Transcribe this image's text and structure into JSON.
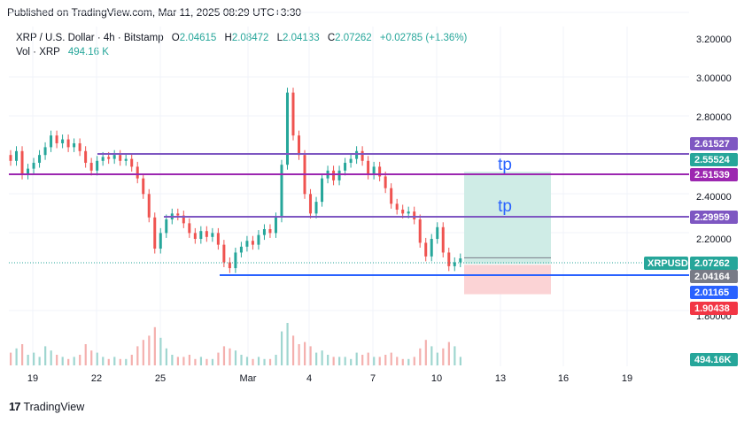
{
  "header": {
    "published": "Published on TradingView.com, Mar 11, 2025 08:29 UTC+3:30"
  },
  "legend": {
    "symbol": "XRP / U.S. Dollar · 4h · Bitstamp",
    "o_label": "O",
    "o": "2.04615",
    "h_label": "H",
    "h": "2.08472",
    "l_label": "L",
    "l": "2.04133",
    "c_label": "C",
    "c": "2.07262",
    "change": "+0.02785 (+1.36%)",
    "vol_label": "Vol · XRP",
    "vol": "494.16 K"
  },
  "footer": {
    "brand": "TradingView",
    "logo": "17"
  },
  "colors": {
    "up": "#26a69a",
    "down": "#ef5350",
    "vol_up": "#9fd6d0",
    "vol_down": "#f4b0ae",
    "purple": "#7e57c2",
    "magenta": "#9c27b0",
    "blue": "#2962ff",
    "target": "#cfece6",
    "stop": "#fbd3d5"
  },
  "chart_data": {
    "type": "candlestick",
    "symbol": "XRPUSD",
    "timeframe": "4h",
    "x_ticks": [
      "19",
      "22",
      "25",
      "Mar",
      "4",
      "7",
      "10",
      "13",
      "16",
      "19"
    ],
    "y_ticks": [
      "3.20000",
      "3.00000",
      "2.80000",
      "2.40000",
      "2.20000",
      "1.80000"
    ],
    "ylim": [
      1.6,
      3.25
    ],
    "levels": [
      {
        "label": "2.61527",
        "price": 2.61527,
        "color": "#7e57c2"
      },
      {
        "label": "2.55524",
        "price": 2.55524,
        "color": "#26a69a"
      },
      {
        "label": "2.51539",
        "price": 2.51539,
        "color": "#9c27b0"
      },
      {
        "label": "2.29959",
        "price": 2.29959,
        "color": "#7e57c2"
      },
      {
        "label": "2.04164",
        "price": 2.04164,
        "color": "#787b86"
      },
      {
        "label": "2.01165",
        "price": 2.01165,
        "color": "#2962ff"
      },
      {
        "label": "1.90438",
        "price": 1.90438,
        "color": "#f23645"
      }
    ],
    "last_price": {
      "symbol": "XRPUSD",
      "value": "2.07262",
      "price": 2.07262
    },
    "volume_tag": "494.16K",
    "take_profit_labels": [
      "tp",
      "tp"
    ],
    "position": {
      "entry": 2.04164,
      "target": 2.55524,
      "stop": 1.90438
    },
    "candles": [
      {
        "t": 0,
        "o": 2.6,
        "c": 2.57
      },
      {
        "t": 3,
        "o": 2.57,
        "c": 2.62
      },
      {
        "t": 6,
        "o": 2.62,
        "c": 2.5
      },
      {
        "t": 9,
        "o": 2.5,
        "c": 2.53
      },
      {
        "t": 12,
        "o": 2.53,
        "c": 2.56
      },
      {
        "t": 15,
        "o": 2.56,
        "c": 2.6
      },
      {
        "t": 18,
        "o": 2.6,
        "c": 2.64
      },
      {
        "t": 21,
        "o": 2.64,
        "c": 2.7
      },
      {
        "t": 24,
        "o": 2.7,
        "c": 2.66
      },
      {
        "t": 27,
        "o": 2.66,
        "c": 2.68
      },
      {
        "t": 30,
        "o": 2.68,
        "c": 2.64
      },
      {
        "t": 33,
        "o": 2.64,
        "c": 2.66
      },
      {
        "t": 36,
        "o": 2.66,
        "c": 2.62
      },
      {
        "t": 39,
        "o": 2.62,
        "c": 2.56
      },
      {
        "t": 42,
        "o": 2.56,
        "c": 2.52
      },
      {
        "t": 45,
        "o": 2.52,
        "c": 2.57
      },
      {
        "t": 48,
        "o": 2.57,
        "c": 2.59
      },
      {
        "t": 51,
        "o": 2.59,
        "c": 2.58
      },
      {
        "t": 54,
        "o": 2.58,
        "c": 2.6
      },
      {
        "t": 57,
        "o": 2.6,
        "c": 2.57
      },
      {
        "t": 60,
        "o": 2.57,
        "c": 2.58
      },
      {
        "t": 63,
        "o": 2.58,
        "c": 2.54
      },
      {
        "t": 66,
        "o": 2.54,
        "c": 2.48
      },
      {
        "t": 69,
        "o": 2.48,
        "c": 2.4
      },
      {
        "t": 72,
        "o": 2.4,
        "c": 2.28
      },
      {
        "t": 75,
        "o": 2.28,
        "c": 2.12
      },
      {
        "t": 78,
        "o": 2.12,
        "c": 2.2
      },
      {
        "t": 81,
        "o": 2.2,
        "c": 2.27
      },
      {
        "t": 84,
        "o": 2.27,
        "c": 2.3
      },
      {
        "t": 87,
        "o": 2.3,
        "c": 2.29
      },
      {
        "t": 90,
        "o": 2.29,
        "c": 2.25
      },
      {
        "t": 93,
        "o": 2.25,
        "c": 2.2
      },
      {
        "t": 96,
        "o": 2.2,
        "c": 2.17
      },
      {
        "t": 99,
        "o": 2.17,
        "c": 2.21
      },
      {
        "t": 102,
        "o": 2.21,
        "c": 2.18
      },
      {
        "t": 105,
        "o": 2.18,
        "c": 2.2
      },
      {
        "t": 108,
        "o": 2.2,
        "c": 2.14
      },
      {
        "t": 111,
        "o": 2.14,
        "c": 2.05
      },
      {
        "t": 114,
        "o": 2.05,
        "c": 2.02
      },
      {
        "t": 117,
        "o": 2.02,
        "c": 2.1
      },
      {
        "t": 120,
        "o": 2.1,
        "c": 2.13
      },
      {
        "t": 123,
        "o": 2.13,
        "c": 2.16
      },
      {
        "t": 126,
        "o": 2.16,
        "c": 2.14
      },
      {
        "t": 129,
        "o": 2.14,
        "c": 2.19
      },
      {
        "t": 132,
        "o": 2.19,
        "c": 2.22
      },
      {
        "t": 135,
        "o": 2.22,
        "c": 2.2
      },
      {
        "t": 138,
        "o": 2.2,
        "c": 2.28
      },
      {
        "t": 141,
        "o": 2.28,
        "c": 2.55
      },
      {
        "t": 144,
        "o": 2.55,
        "c": 2.92
      },
      {
        "t": 147,
        "o": 2.92,
        "c": 2.7
      },
      {
        "t": 150,
        "o": 2.7,
        "c": 2.6
      },
      {
        "t": 153,
        "o": 2.6,
        "c": 2.4
      },
      {
        "t": 156,
        "o": 2.4,
        "c": 2.3
      },
      {
        "t": 159,
        "o": 2.3,
        "c": 2.36
      },
      {
        "t": 162,
        "o": 2.36,
        "c": 2.48
      },
      {
        "t": 165,
        "o": 2.48,
        "c": 2.52
      },
      {
        "t": 168,
        "o": 2.52,
        "c": 2.47
      },
      {
        "t": 171,
        "o": 2.47,
        "c": 2.52
      },
      {
        "t": 174,
        "o": 2.52,
        "c": 2.56
      },
      {
        "t": 177,
        "o": 2.56,
        "c": 2.58
      },
      {
        "t": 180,
        "o": 2.58,
        "c": 2.62
      },
      {
        "t": 183,
        "o": 2.62,
        "c": 2.57
      },
      {
        "t": 186,
        "o": 2.57,
        "c": 2.5
      },
      {
        "t": 189,
        "o": 2.5,
        "c": 2.54
      },
      {
        "t": 192,
        "o": 2.54,
        "c": 2.49
      },
      {
        "t": 195,
        "o": 2.49,
        "c": 2.43
      },
      {
        "t": 198,
        "o": 2.43,
        "c": 2.35
      },
      {
        "t": 201,
        "o": 2.35,
        "c": 2.32
      },
      {
        "t": 204,
        "o": 2.32,
        "c": 2.3
      },
      {
        "t": 207,
        "o": 2.3,
        "c": 2.31
      },
      {
        "t": 210,
        "o": 2.31,
        "c": 2.27
      },
      {
        "t": 213,
        "o": 2.27,
        "c": 2.15
      },
      {
        "t": 216,
        "o": 2.15,
        "c": 2.08
      },
      {
        "t": 219,
        "o": 2.08,
        "c": 2.17
      },
      {
        "t": 222,
        "o": 2.17,
        "c": 2.23
      },
      {
        "t": 225,
        "o": 2.23,
        "c": 2.1
      },
      {
        "t": 228,
        "o": 2.1,
        "c": 2.03
      },
      {
        "t": 231,
        "o": 2.03,
        "c": 2.05
      },
      {
        "t": 234,
        "o": 2.05,
        "c": 2.07
      }
    ],
    "volume": [
      {
        "t": 0,
        "v": 6,
        "up": false
      },
      {
        "t": 3,
        "v": 8,
        "up": true
      },
      {
        "t": 6,
        "v": 10,
        "up": false
      },
      {
        "t": 9,
        "v": 5,
        "up": true
      },
      {
        "t": 12,
        "v": 6,
        "up": true
      },
      {
        "t": 15,
        "v": 4,
        "up": true
      },
      {
        "t": 18,
        "v": 9,
        "up": true
      },
      {
        "t": 21,
        "v": 7,
        "up": true
      },
      {
        "t": 24,
        "v": 5,
        "up": false
      },
      {
        "t": 27,
        "v": 4,
        "up": true
      },
      {
        "t": 30,
        "v": 3,
        "up": false
      },
      {
        "t": 33,
        "v": 4,
        "up": true
      },
      {
        "t": 36,
        "v": 5,
        "up": false
      },
      {
        "t": 39,
        "v": 10,
        "up": false
      },
      {
        "t": 42,
        "v": 7,
        "up": false
      },
      {
        "t": 45,
        "v": 6,
        "up": true
      },
      {
        "t": 48,
        "v": 4,
        "up": true
      },
      {
        "t": 51,
        "v": 3,
        "up": false
      },
      {
        "t": 54,
        "v": 4,
        "up": true
      },
      {
        "t": 57,
        "v": 3,
        "up": false
      },
      {
        "t": 60,
        "v": 3,
        "up": true
      },
      {
        "t": 63,
        "v": 5,
        "up": false
      },
      {
        "t": 66,
        "v": 9,
        "up": false
      },
      {
        "t": 69,
        "v": 12,
        "up": false
      },
      {
        "t": 72,
        "v": 14,
        "up": false
      },
      {
        "t": 75,
        "v": 18,
        "up": false
      },
      {
        "t": 78,
        "v": 13,
        "up": true
      },
      {
        "t": 81,
        "v": 8,
        "up": true
      },
      {
        "t": 84,
        "v": 5,
        "up": true
      },
      {
        "t": 87,
        "v": 4,
        "up": false
      },
      {
        "t": 90,
        "v": 4,
        "up": false
      },
      {
        "t": 93,
        "v": 5,
        "up": false
      },
      {
        "t": 96,
        "v": 3,
        "up": false
      },
      {
        "t": 99,
        "v": 4,
        "up": true
      },
      {
        "t": 102,
        "v": 3,
        "up": false
      },
      {
        "t": 105,
        "v": 3,
        "up": true
      },
      {
        "t": 108,
        "v": 6,
        "up": false
      },
      {
        "t": 111,
        "v": 9,
        "up": false
      },
      {
        "t": 114,
        "v": 8,
        "up": false
      },
      {
        "t": 117,
        "v": 7,
        "up": true
      },
      {
        "t": 120,
        "v": 5,
        "up": true
      },
      {
        "t": 123,
        "v": 4,
        "up": true
      },
      {
        "t": 126,
        "v": 3,
        "up": false
      },
      {
        "t": 129,
        "v": 4,
        "up": true
      },
      {
        "t": 132,
        "v": 3,
        "up": true
      },
      {
        "t": 135,
        "v": 3,
        "up": false
      },
      {
        "t": 138,
        "v": 5,
        "up": true
      },
      {
        "t": 141,
        "v": 16,
        "up": true
      },
      {
        "t": 144,
        "v": 20,
        "up": true
      },
      {
        "t": 147,
        "v": 14,
        "up": false
      },
      {
        "t": 150,
        "v": 10,
        "up": false
      },
      {
        "t": 153,
        "v": 11,
        "up": false
      },
      {
        "t": 156,
        "v": 9,
        "up": false
      },
      {
        "t": 159,
        "v": 6,
        "up": true
      },
      {
        "t": 162,
        "v": 7,
        "up": true
      },
      {
        "t": 165,
        "v": 5,
        "up": true
      },
      {
        "t": 168,
        "v": 4,
        "up": false
      },
      {
        "t": 171,
        "v": 4,
        "up": true
      },
      {
        "t": 174,
        "v": 4,
        "up": true
      },
      {
        "t": 177,
        "v": 3,
        "up": true
      },
      {
        "t": 180,
        "v": 6,
        "up": true
      },
      {
        "t": 183,
        "v": 5,
        "up": false
      },
      {
        "t": 186,
        "v": 6,
        "up": false
      },
      {
        "t": 189,
        "v": 4,
        "up": true
      },
      {
        "t": 192,
        "v": 4,
        "up": false
      },
      {
        "t": 195,
        "v": 5,
        "up": false
      },
      {
        "t": 198,
        "v": 6,
        "up": false
      },
      {
        "t": 201,
        "v": 4,
        "up": false
      },
      {
        "t": 204,
        "v": 3,
        "up": false
      },
      {
        "t": 207,
        "v": 3,
        "up": true
      },
      {
        "t": 210,
        "v": 4,
        "up": false
      },
      {
        "t": 213,
        "v": 8,
        "up": false
      },
      {
        "t": 216,
        "v": 12,
        "up": false
      },
      {
        "t": 219,
        "v": 9,
        "up": true
      },
      {
        "t": 222,
        "v": 6,
        "up": true
      },
      {
        "t": 225,
        "v": 8,
        "up": false
      },
      {
        "t": 228,
        "v": 11,
        "up": false
      },
      {
        "t": 231,
        "v": 9,
        "up": true
      },
      {
        "t": 234,
        "v": 4,
        "up": true
      }
    ]
  }
}
